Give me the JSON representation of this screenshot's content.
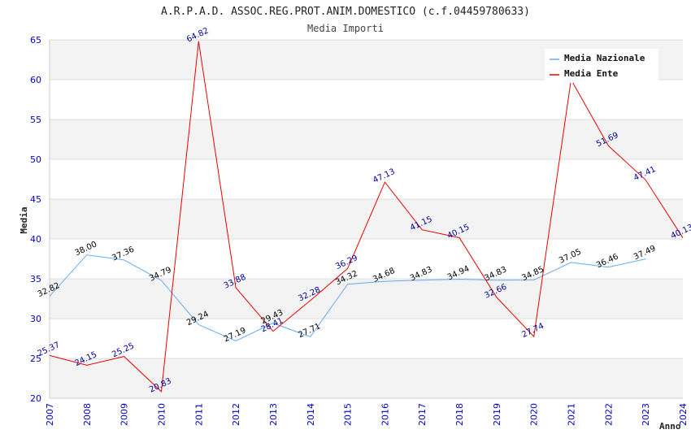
{
  "chart_data": {
    "type": "line",
    "title": "A.R.P.A.D. ASSOC.REG.PROT.ANIM.DOMESTICO (c.f.04459780633)",
    "subtitle": "Media Importi",
    "xlabel": "Anno",
    "ylabel": "Media",
    "ylim": [
      20,
      65
    ],
    "yticks": [
      "20",
      "25",
      "30",
      "35",
      "40",
      "45",
      "50",
      "55",
      "60",
      "65"
    ],
    "categories": [
      "2007",
      "2008",
      "2009",
      "2010",
      "2011",
      "2012",
      "2013",
      "2014",
      "2015",
      "2016",
      "2017",
      "2018",
      "2019",
      "2020",
      "2021",
      "2022",
      "2023",
      "2024"
    ],
    "grid": "horizontal bands",
    "legend_position": "top-right",
    "series": [
      {
        "name": "Media Nazionale",
        "color": "#66aaee",
        "label_color": "#000000",
        "values": [
          32.82,
          38.0,
          37.36,
          34.79,
          29.24,
          27.19,
          29.43,
          27.71,
          34.32,
          34.68,
          34.83,
          34.94,
          34.83,
          34.85,
          37.05,
          36.46,
          37.49,
          null
        ],
        "labels": [
          "32.82",
          "38.00",
          "37.36",
          "34.79",
          "29.24",
          "27.19",
          "29.43",
          "27.71",
          "34.32",
          "34.68",
          "34.83",
          "34.94",
          "34.83",
          "34.85",
          "37.05",
          "36.46",
          "37.49",
          ""
        ]
      },
      {
        "name": "Media Ente",
        "color": "#ee0000",
        "label_color": "#000099",
        "values": [
          25.37,
          24.15,
          25.25,
          20.83,
          64.82,
          33.88,
          28.41,
          32.28,
          36.29,
          47.13,
          41.15,
          40.15,
          32.66,
          27.74,
          60.0,
          51.69,
          47.41,
          40.13
        ],
        "labels": [
          "25.37",
          "24.15",
          "25.25",
          "20.83",
          "64.82",
          "33.88",
          "28.41",
          "32.28",
          "36.29",
          "47.13",
          "41.15",
          "40.15",
          "32.66",
          "27.74",
          "",
          "51.69",
          "47.41",
          "40.13"
        ]
      }
    ]
  }
}
